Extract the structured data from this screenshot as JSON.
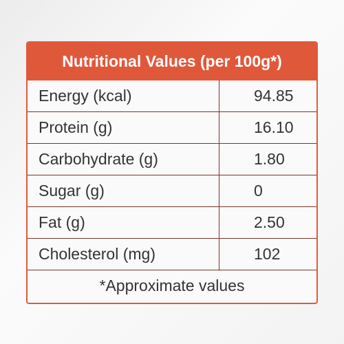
{
  "header": {
    "title": "Nutritional Values (per 100g*)"
  },
  "table": {
    "rows": [
      [
        "Energy (kcal)",
        "94.85"
      ],
      [
        "Protein (g)",
        "16.10"
      ],
      [
        "Carbohydrate (g)",
        "1.80"
      ],
      [
        "Sugar (g)",
        "0"
      ],
      [
        "Fat (g)",
        "2.50"
      ],
      [
        "Cholesterol (mg)",
        "102"
      ]
    ]
  },
  "footer": {
    "note": "*Approximate values"
  }
}
